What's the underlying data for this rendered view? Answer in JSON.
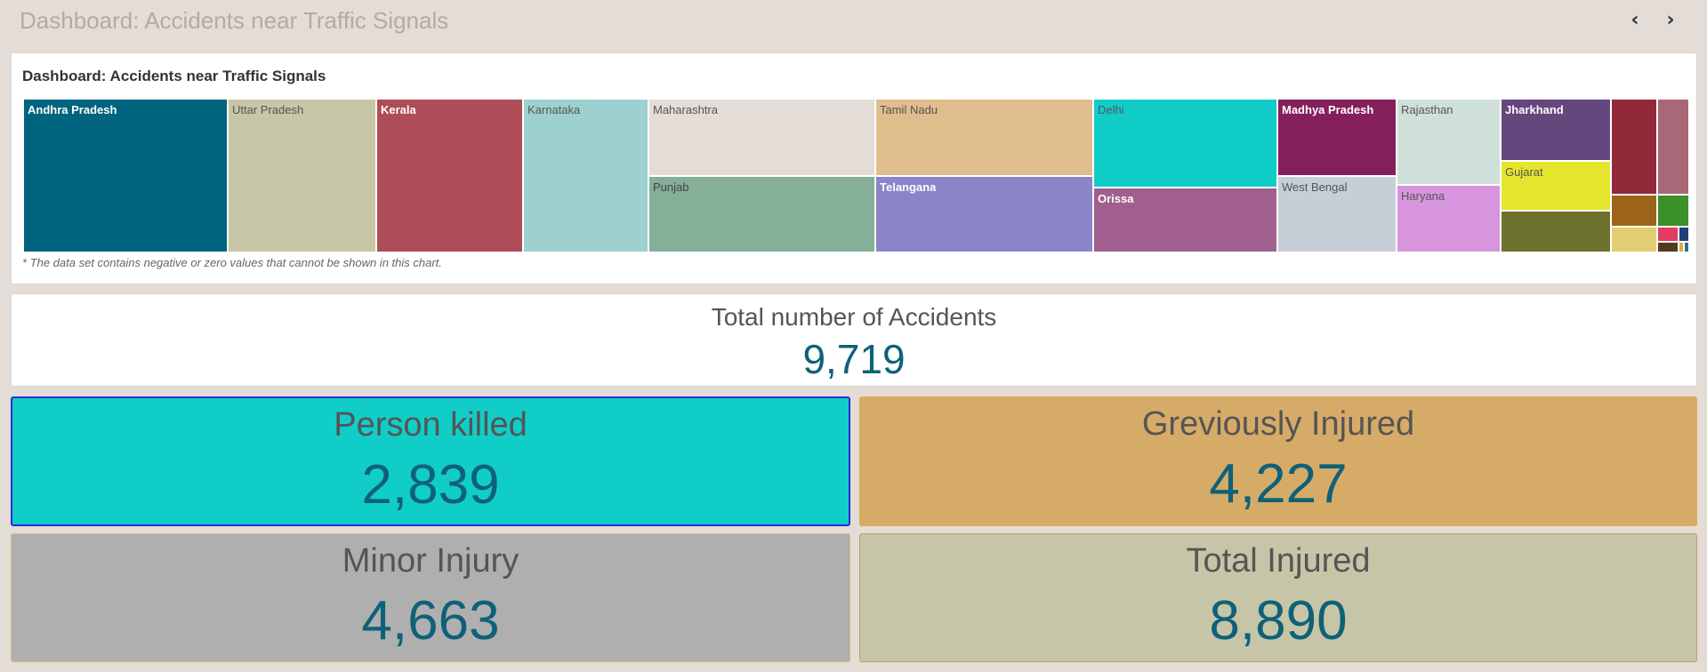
{
  "header": {
    "title": "Dashboard: Accidents near Traffic Signals",
    "prev_icon": "chevron-left-icon",
    "next_icon": "chevron-right-icon",
    "prev_glyph": "‹",
    "next_glyph": "›"
  },
  "treemap": {
    "title": "Dashboard: Accidents near Traffic Signals",
    "note": "* The data set contains negative or zero values that cannot be shown in this chart.",
    "cells": [
      {
        "label": "Andhra Pradesh",
        "color": "#00647f",
        "text": "#ffffff"
      },
      {
        "label": "Uttar Pradesh",
        "color": "#c7c6a7",
        "text": "#555555"
      },
      {
        "label": "Kerala",
        "color": "#ae4d57",
        "text": "#ffffff"
      },
      {
        "label": "Karnataka",
        "color": "#9dd0cf",
        "text": "#555555"
      },
      {
        "label": "Maharashtra",
        "color": "#e3dcd7",
        "text": "#555555"
      },
      {
        "label": "Punjab",
        "color": "#85af98",
        "text": "#444444"
      },
      {
        "label": "Tamil Nadu",
        "color": "#e0bd8c",
        "text": "#555555"
      },
      {
        "label": "Telangana",
        "color": "#8a85c8",
        "text": "#ffffff"
      },
      {
        "label": "Delhi",
        "color": "#11cdc8",
        "text": "#555555"
      },
      {
        "label": "Orissa",
        "color": "#a05f8e",
        "text": "#ffffff"
      },
      {
        "label": "Madhya Pradesh",
        "color": "#841f5c",
        "text": "#ffffff"
      },
      {
        "label": "West Bengal",
        "color": "#c6ced8",
        "text": "#555555"
      },
      {
        "label": "Rajasthan",
        "color": "#cfe0da",
        "text": "#555555"
      },
      {
        "label": "Haryana",
        "color": "#d695dd",
        "text": "#555555"
      },
      {
        "label": "Jharkhand",
        "color": "#65477e",
        "text": "#ffffff"
      },
      {
        "label": "Gujarat",
        "color": "#e6e52e",
        "text": "#555555"
      },
      {
        "label": "",
        "color": "#6d722f",
        "text": "#ffffff"
      },
      {
        "label": "",
        "color": "#91293a",
        "text": "#ffffff"
      },
      {
        "label": "",
        "color": "#a96878",
        "text": "#ffffff"
      },
      {
        "label": "",
        "color": "#9c6418",
        "text": "#ffffff"
      },
      {
        "label": "",
        "color": "#3b9029",
        "text": "#ffffff"
      },
      {
        "label": "",
        "color": "#e3cd73",
        "text": "#ffffff"
      },
      {
        "label": "",
        "color": "#e33c62",
        "text": "#ffffff"
      },
      {
        "label": "",
        "color": "#1f3f7a",
        "text": "#ffffff"
      },
      {
        "label": "",
        "color": "#523c1e",
        "text": "#ffffff"
      },
      {
        "label": "",
        "color": "#e0a94a",
        "text": "#ffffff"
      },
      {
        "label": "",
        "color": "#2f6f8f",
        "text": "#ffffff"
      }
    ]
  },
  "total": {
    "label": "Total number of Accidents",
    "value": "9,719"
  },
  "kpis": {
    "killed": {
      "label": "Person killed",
      "value": "2,839"
    },
    "grievous": {
      "label": "Greviously Injured",
      "value": "4,227"
    },
    "minor": {
      "label": "Minor Injury",
      "value": "4,663"
    },
    "total_injured": {
      "label": "Total Injured",
      "value": "8,890"
    }
  }
}
